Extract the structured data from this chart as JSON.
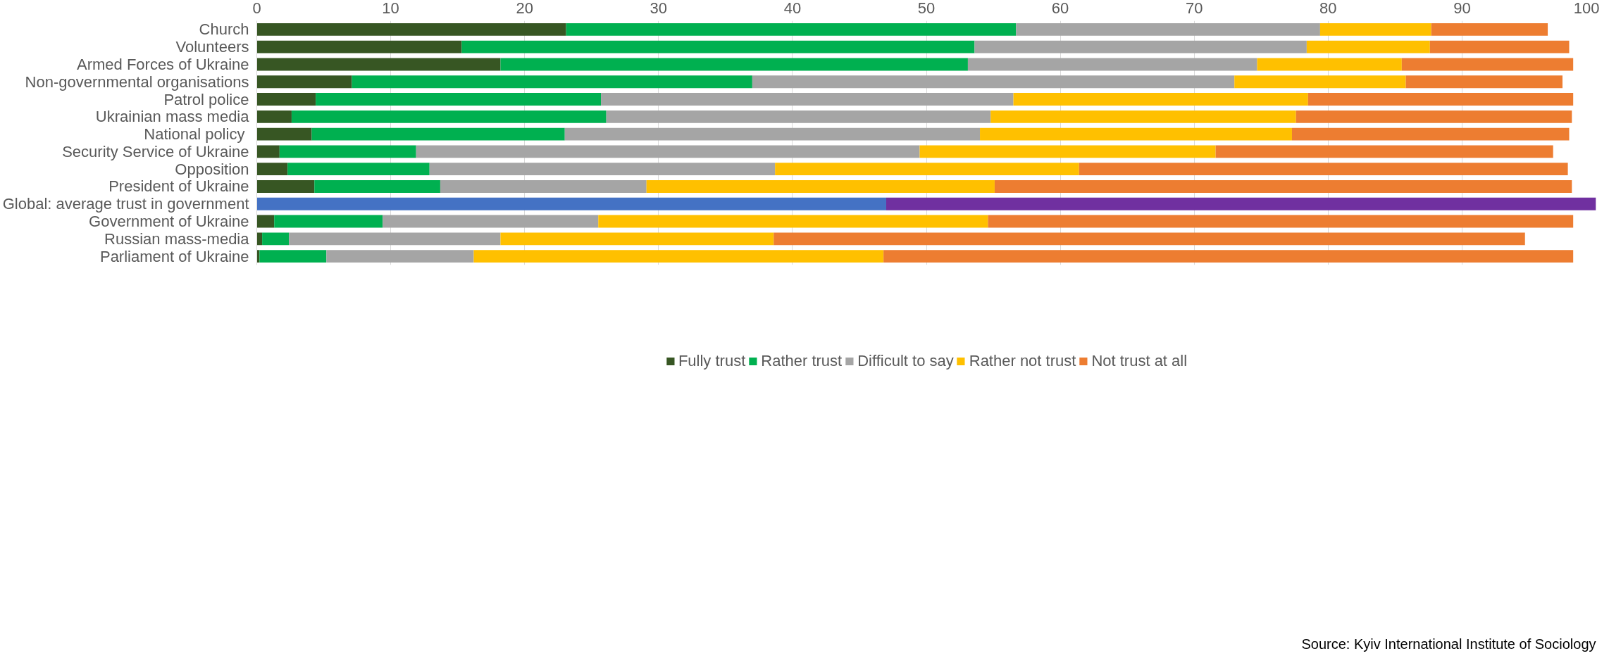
{
  "chart_data": {
    "type": "bar",
    "orientation": "horizontal",
    "stacked": true,
    "categories": [
      "Church",
      "Volunteers",
      "Armed Forces of Ukraine",
      "Non-governmental organisations",
      "Patrol police",
      "Ukrainian mass media",
      "National policy ",
      "Security Service of Ukraine",
      "Opposition",
      "President of Ukraine",
      "Global: average trust in government",
      "Government of Ukraine",
      "Russian mass-media",
      "Parliament of Ukraine"
    ],
    "series": [
      {
        "name": "Fully trust",
        "color": "#375623",
        "values": [
          23.1,
          15.3,
          18.2,
          7.1,
          4.4,
          2.6,
          4.1,
          1.7,
          2.3,
          4.3,
          null,
          1.3,
          0.4,
          0.2
        ]
      },
      {
        "name": "Rather trust",
        "color": "#00b050",
        "values": [
          33.6,
          38.3,
          34.9,
          29.9,
          21.3,
          23.5,
          18.9,
          10.2,
          10.6,
          9.4,
          null,
          8.1,
          2.0,
          5.0
        ]
      },
      {
        "name": "Difficult to say",
        "color": "#a5a5a5",
        "values": [
          22.7,
          24.8,
          21.6,
          36.0,
          30.8,
          28.7,
          31.0,
          37.6,
          25.8,
          15.4,
          null,
          16.1,
          15.8,
          11.0
        ]
      },
      {
        "name": "Rather not trust",
        "color": "#ffc000",
        "values": [
          8.3,
          9.2,
          10.8,
          12.8,
          22.0,
          22.8,
          23.3,
          22.1,
          22.7,
          26.0,
          null,
          29.1,
          20.4,
          30.6
        ]
      },
      {
        "name": "Not trust at all",
        "color": "#ed7d31",
        "values": [
          8.7,
          10.4,
          12.8,
          11.7,
          19.8,
          20.6,
          20.7,
          25.2,
          36.5,
          43.1,
          null,
          43.7,
          56.1,
          51.5
        ]
      },
      {
        "color": "#4472c4",
        "values": [
          null,
          null,
          null,
          null,
          null,
          null,
          null,
          null,
          null,
          null,
          47.0,
          null,
          null,
          null
        ]
      },
      {
        "color": "#7030a0",
        "values": [
          null,
          null,
          null,
          null,
          null,
          null,
          null,
          null,
          null,
          null,
          53.0,
          null,
          null,
          null
        ]
      }
    ],
    "xlim": [
      0,
      100
    ],
    "xticks": [
      0,
      10,
      20,
      30,
      40,
      50,
      60,
      70,
      80,
      90,
      100
    ],
    "grid": "x",
    "legend": "bottom",
    "annotations": [
      "Source: Kyiv International Institute of Sociology"
    ]
  }
}
